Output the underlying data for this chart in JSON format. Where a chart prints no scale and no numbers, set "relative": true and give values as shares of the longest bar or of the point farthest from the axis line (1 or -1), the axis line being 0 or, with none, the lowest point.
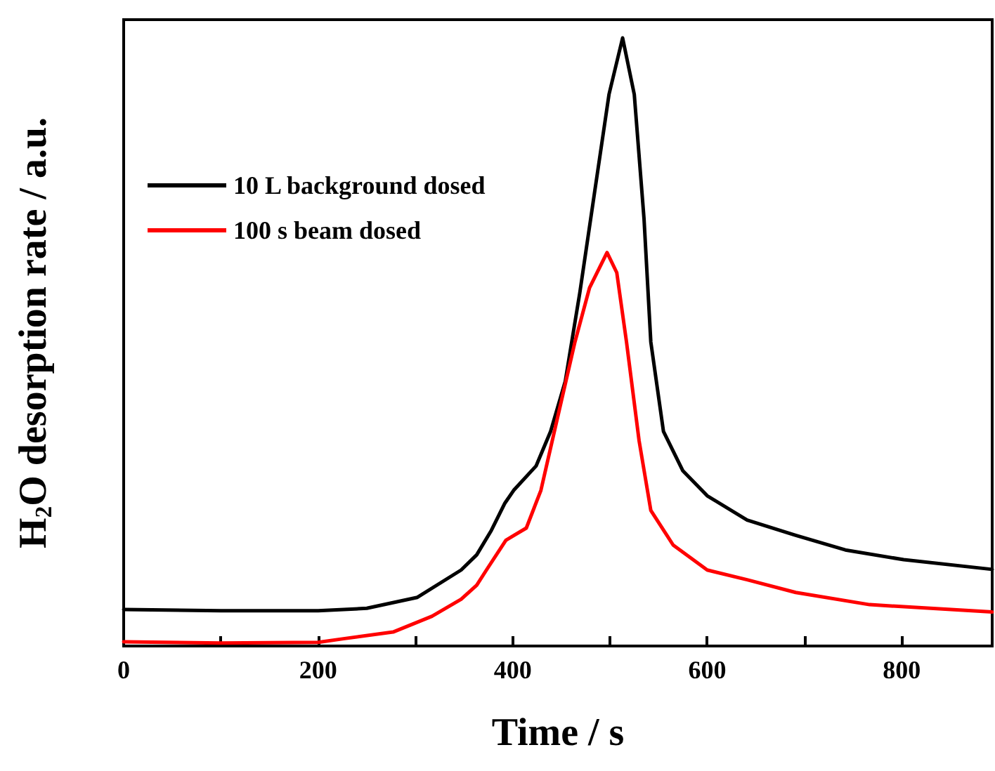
{
  "chart_data": {
    "type": "line",
    "xlabel": "Time / s",
    "ylabel": "H$_{2}$O desorption rate / a.u.",
    "relative": true,
    "xlim": [
      0,
      893
    ],
    "xticks": [
      0,
      {
        "value": 100,
        "label": null
      },
      200,
      {
        "value": 300,
        "label": null
      },
      400,
      {
        "value": 500,
        "label": null
      },
      600,
      {
        "value": 700,
        "label": null
      },
      800
    ],
    "legend": "top left",
    "marker": "none",
    "line_style": "solid",
    "grid": false,
    "series": [
      {
        "name": "10 L background dosed",
        "color": "#000000",
        "x": [
          0,
          100,
          200,
          250,
          302,
          347,
          363,
          378,
          392,
          401,
          424,
          439,
          454,
          469,
          484,
          499,
          513,
          525,
          535,
          542,
          555,
          575,
          600,
          641,
          691,
          742,
          802,
          893
        ],
        "values": [
          0.06,
          0.058,
          0.058,
          0.062,
          0.08,
          0.125,
          0.15,
          0.19,
          0.235,
          0.256,
          0.296,
          0.353,
          0.435,
          0.581,
          0.744,
          0.907,
          1.0,
          0.907,
          0.703,
          0.5,
          0.353,
          0.288,
          0.247,
          0.207,
          0.182,
          0.158,
          0.142,
          0.126
        ]
      },
      {
        "name": "100 s beam dosed",
        "color": "#ff0000",
        "x": [
          0,
          100,
          200,
          226,
          277,
          317,
          347,
          363,
          373,
          393,
          414,
          429,
          444,
          464,
          479,
          497,
          507,
          517,
          530,
          542,
          565,
          600,
          641,
          691,
          767,
          893
        ],
        "values": [
          0.007,
          0.005,
          0.006,
          0.012,
          0.023,
          0.049,
          0.077,
          0.1,
          0.125,
          0.174,
          0.194,
          0.256,
          0.361,
          0.5,
          0.589,
          0.647,
          0.614,
          0.5,
          0.337,
          0.223,
          0.166,
          0.125,
          0.109,
          0.088,
          0.068,
          0.056
        ]
      }
    ]
  }
}
